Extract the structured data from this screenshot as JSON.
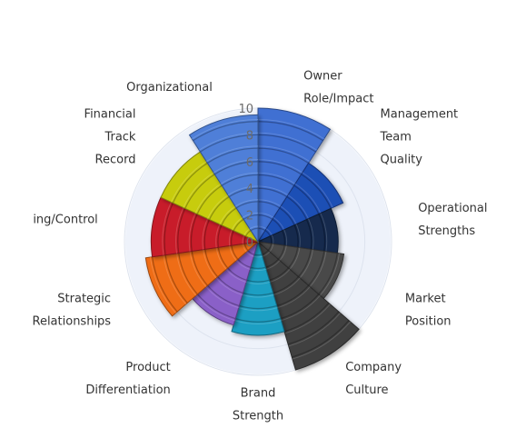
{
  "chart_data": {
    "type": "polar-area",
    "ylim": [
      0,
      10
    ],
    "ticks": [
      "0",
      "2",
      "4",
      "6",
      "8",
      "10"
    ],
    "grid": true,
    "legend": "none",
    "categories": [
      {
        "label": [
          "Owner",
          "Role/Impact"
        ],
        "value": 10.0,
        "color": "#3f6fd2"
      },
      {
        "label": [
          "Management",
          "Team",
          "Quality"
        ],
        "value": 7.0,
        "color": "#1f4fb5"
      },
      {
        "label": [
          "Operational",
          "Strengths"
        ],
        "value": 6.0,
        "color": "#142a4e"
      },
      {
        "label": [
          "Market",
          "Position"
        ],
        "value": 6.5,
        "color": "#4a4a4a"
      },
      {
        "label": [
          "Company",
          "Culture"
        ],
        "value": 10.0,
        "color": "#404040"
      },
      {
        "label": [
          "Brand",
          "Strength"
        ],
        "value": 7.0,
        "color": "#1e9fc3"
      },
      {
        "label": [
          "Product",
          "Differentiation"
        ],
        "value": 6.5,
        "color": "#8a60c8"
      },
      {
        "label": [
          "Strategic",
          "Relationships"
        ],
        "value": 8.5,
        "color": "#ef6d17"
      },
      {
        "label": [
          "ing/Control"
        ],
        "value": 8.0,
        "color": "#c81f2b"
      },
      {
        "label": [
          "Financial",
          "Track",
          "Record"
        ],
        "value": 8.0,
        "color": "#c7cc10"
      },
      {
        "label": [
          "Organizational"
        ],
        "value": 9.5,
        "color": "#4f7fd8"
      }
    ]
  }
}
